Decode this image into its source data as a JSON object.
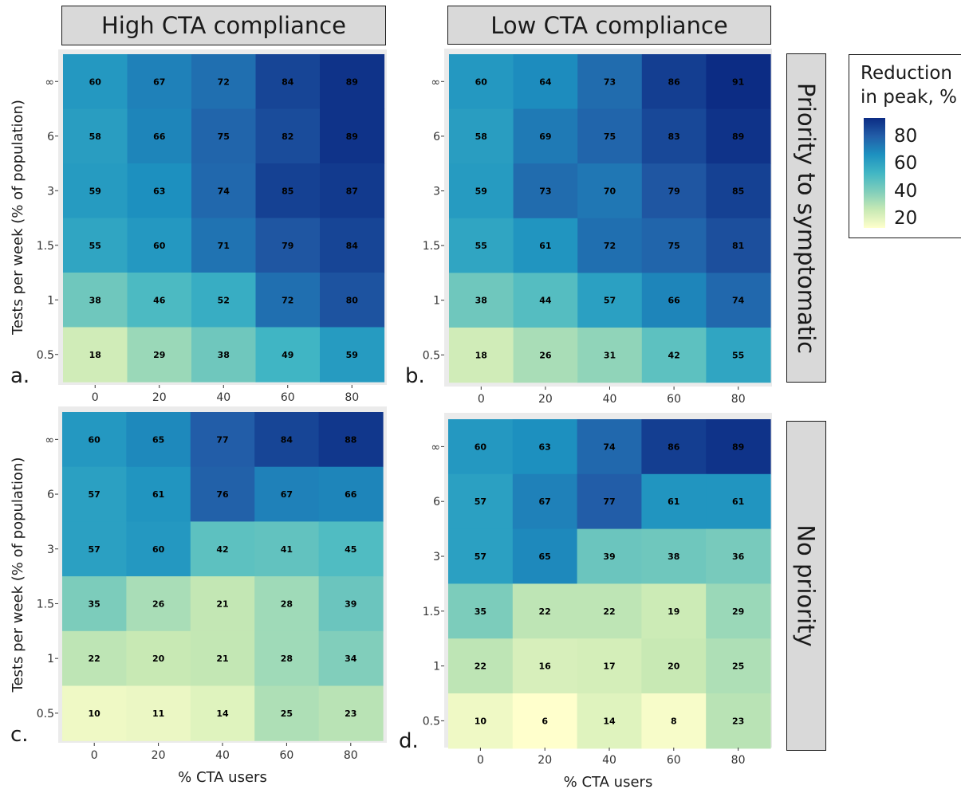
{
  "facets": {
    "columns": [
      "High CTA compliance",
      "Low CTA compliance"
    ],
    "rows": [
      "Priority to symptomatic",
      "No priority"
    ]
  },
  "legend": {
    "title_line1": "Reduction",
    "title_line2": "in peak, %",
    "ticks": [
      "80",
      "60",
      "40",
      "20"
    ],
    "colors": [
      "#ffffcc",
      "#c7e9b4",
      "#7fcdbb",
      "#41b6c4",
      "#1d91c0",
      "#225ea8",
      "#0c2c84"
    ],
    "range": [
      6,
      91
    ]
  },
  "chart_data": [
    {
      "type": "heatmap",
      "panel": "a.",
      "xlabel": "",
      "ylabel": "Tests per week (% of population)",
      "x": [
        "0",
        "20",
        "40",
        "60",
        "80"
      ],
      "y": [
        "∞",
        "6",
        "3",
        "1.5",
        "1",
        "0.5"
      ],
      "values": [
        [
          60,
          67,
          72,
          84,
          89
        ],
        [
          58,
          66,
          75,
          82,
          89
        ],
        [
          59,
          63,
          74,
          85,
          87
        ],
        [
          55,
          60,
          71,
          79,
          84
        ],
        [
          38,
          46,
          52,
          72,
          80
        ],
        [
          18,
          29,
          38,
          49,
          59
        ]
      ]
    },
    {
      "type": "heatmap",
      "panel": "b.",
      "xlabel": "",
      "ylabel": "",
      "x": [
        "0",
        "20",
        "40",
        "60",
        "80"
      ],
      "y": [
        "∞",
        "6",
        "3",
        "1.5",
        "1",
        "0.5"
      ],
      "values": [
        [
          60,
          64,
          73,
          86,
          91
        ],
        [
          58,
          69,
          75,
          83,
          89
        ],
        [
          59,
          73,
          70,
          79,
          85
        ],
        [
          55,
          61,
          72,
          75,
          81
        ],
        [
          38,
          44,
          57,
          66,
          74
        ],
        [
          18,
          26,
          31,
          42,
          55
        ]
      ]
    },
    {
      "type": "heatmap",
      "panel": "c.",
      "xlabel": "% CTA users",
      "ylabel": "Tests per week (% of population)",
      "x": [
        "0",
        "20",
        "40",
        "60",
        "80"
      ],
      "y": [
        "∞",
        "6",
        "3",
        "1.5",
        "1",
        "0.5"
      ],
      "values": [
        [
          60,
          65,
          77,
          84,
          88
        ],
        [
          57,
          61,
          76,
          67,
          66
        ],
        [
          57,
          60,
          42,
          41,
          45
        ],
        [
          35,
          26,
          21,
          28,
          39
        ],
        [
          22,
          20,
          21,
          28,
          34
        ],
        [
          10,
          11,
          14,
          25,
          23
        ]
      ]
    },
    {
      "type": "heatmap",
      "panel": "d.",
      "xlabel": "% CTA users",
      "ylabel": "",
      "x": [
        "0",
        "20",
        "40",
        "60",
        "80"
      ],
      "y": [
        "∞",
        "6",
        "3",
        "1.5",
        "1",
        "0.5"
      ],
      "values": [
        [
          60,
          63,
          74,
          86,
          89
        ],
        [
          57,
          67,
          77,
          61,
          61
        ],
        [
          57,
          65,
          39,
          38,
          36
        ],
        [
          35,
          22,
          22,
          19,
          29
        ],
        [
          22,
          16,
          17,
          20,
          25
        ],
        [
          10,
          6,
          14,
          8,
          23
        ]
      ]
    }
  ]
}
